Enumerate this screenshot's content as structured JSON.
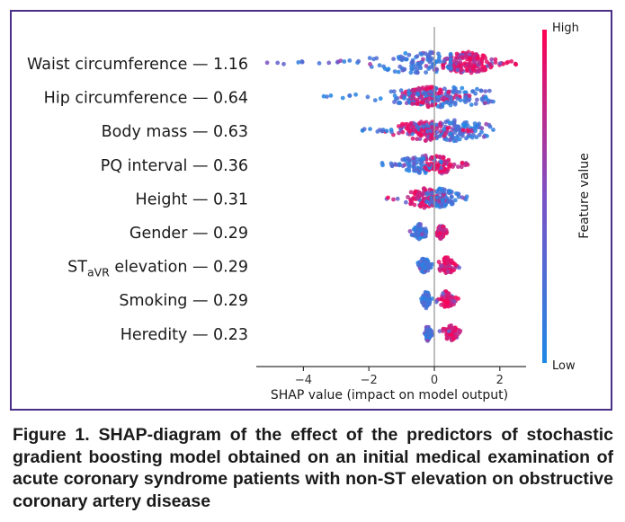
{
  "chart_data": {
    "type": "scatter",
    "subtype": "shap-beeswarm",
    "title": "",
    "xlabel": "SHAP value (impact on model output)",
    "ylabel": "",
    "xlim": [
      -5.5,
      2.75
    ],
    "xticks": [
      -4,
      -2,
      0,
      2
    ],
    "xtick_labels": [
      "−4",
      "−2",
      "0",
      "2"
    ],
    "colorbar": {
      "label": "Feature value",
      "high": "High",
      "low": "Low",
      "high_color": "#ff0052",
      "low_color": "#1e88e5"
    },
    "features": [
      {
        "label": "Waist circumference — 1.16",
        "importance": 1.16,
        "low_range": [
          -5.3,
          0.5
        ],
        "high_range": [
          0.2,
          2.5
        ],
        "low_peak": -0.3,
        "high_peak": 1.0,
        "spread": 13,
        "count": 300
      },
      {
        "label": "Hip circumference — 0.64",
        "importance": 0.64,
        "low_range": [
          -3.6,
          1.8
        ],
        "high_range": [
          -1.0,
          1.2
        ],
        "low_peak": 0.3,
        "high_peak": -0.2,
        "spread": 12,
        "count": 260
      },
      {
        "label": "Body mass — 0.63",
        "importance": 0.63,
        "low_range": [
          -2.3,
          1.8
        ],
        "high_range": [
          -1.5,
          1.2
        ],
        "low_peak": 0.6,
        "high_peak": -0.3,
        "spread": 12,
        "count": 250
      },
      {
        "label": "PQ interval — 0.36",
        "importance": 0.36,
        "low_range": [
          -1.7,
          0.2
        ],
        "high_range": [
          -0.3,
          1.1
        ],
        "low_peak": -0.4,
        "high_peak": 0.2,
        "spread": 11,
        "count": 160
      },
      {
        "label": "Height — 0.31",
        "importance": 0.31,
        "low_range": [
          -0.5,
          1.0
        ],
        "high_range": [
          -1.5,
          0.3
        ],
        "low_peak": 0.2,
        "high_peak": -0.3,
        "spread": 11,
        "count": 180
      },
      {
        "label": "Gender — 0.29",
        "importance": 0.29,
        "low_range": [
          -0.85,
          -0.15
        ],
        "high_range": [
          0.05,
          0.4
        ],
        "low_peak": -0.45,
        "high_peak": 0.2,
        "spread": 9,
        "count": 120
      },
      {
        "label": "ST",
        "label_sub": "aVR",
        "label_rest": " elevation — 0.29",
        "importance": 0.29,
        "low_range": [
          -0.5,
          -0.05
        ],
        "high_range": [
          0.05,
          0.95
        ],
        "low_peak": -0.3,
        "high_peak": 0.4,
        "spread": 10,
        "count": 140
      },
      {
        "label": "Smoking — 0.29",
        "importance": 0.29,
        "low_range": [
          -0.4,
          -0.05
        ],
        "high_range": [
          0.05,
          0.85
        ],
        "low_peak": -0.25,
        "high_peak": 0.4,
        "spread": 10,
        "count": 130
      },
      {
        "label": "Heredity — 0.23",
        "importance": 0.23,
        "low_range": [
          -0.3,
          -0.05
        ],
        "high_range": [
          0.1,
          0.85
        ],
        "low_peak": -0.2,
        "high_peak": 0.5,
        "spread": 9,
        "count": 110
      }
    ]
  },
  "caption": "Figure 1. SHAP-diagram of the effect of the predictors of stochastic gradient boosting model obtained on an initial medical examination of acute coronary syndrome patients with non-ST elevation on obstructive coronary artery disease"
}
